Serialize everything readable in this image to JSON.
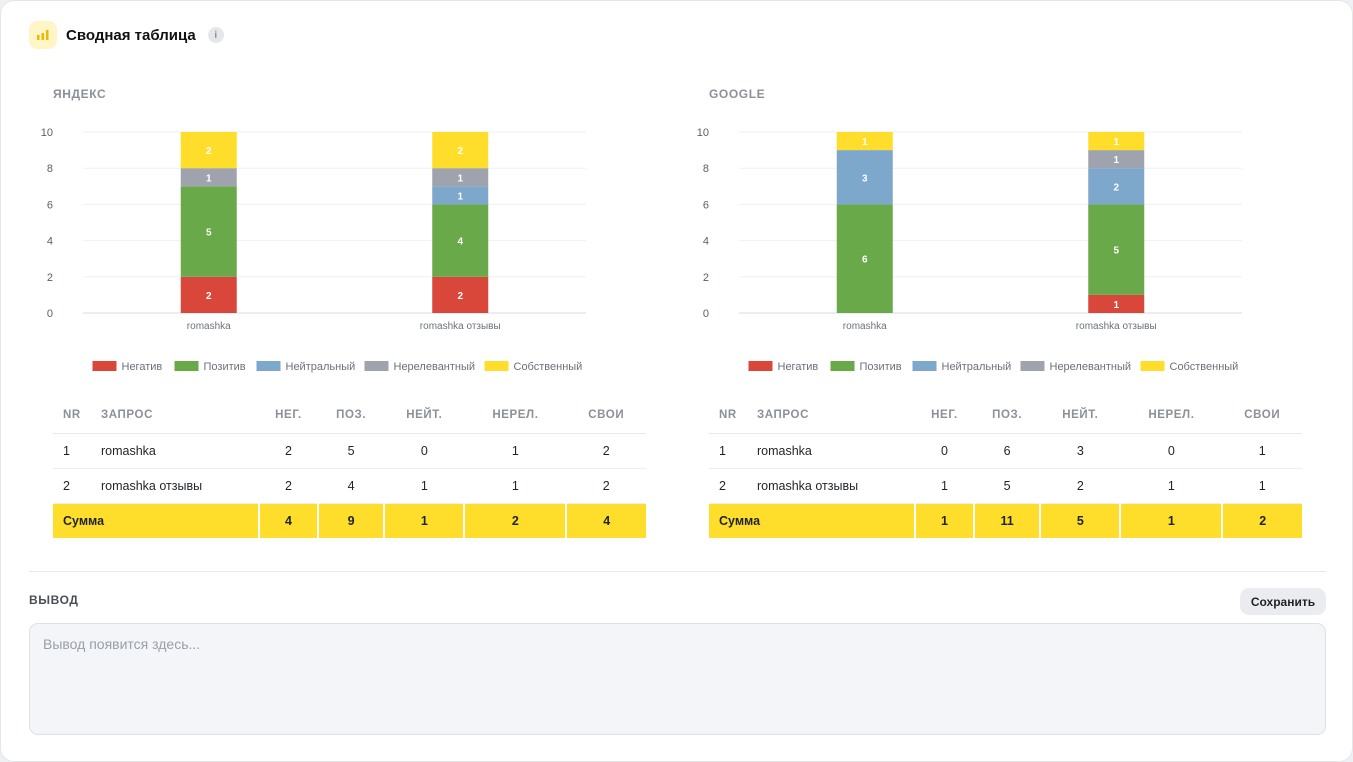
{
  "header": {
    "title": "Сводная таблица",
    "info": "i",
    "icon": "bar-chart-icon"
  },
  "colors": {
    "Негатив": "#d9473b",
    "Позитив": "#6aa94a",
    "Нейтральный": "#7ea7cc",
    "Нерелевантный": "#9ea3ad",
    "Собственный": "#ffdd2b",
    "accent": "#ffdd2b"
  },
  "panels": [
    {
      "title": "ЯНДЕКС",
      "table": {
        "headers": [
          "NR",
          "ЗАПРОС",
          "НЕГ.",
          "ПОЗ.",
          "НЕЙТ.",
          "НЕРЕЛ.",
          "СВОИ"
        ],
        "rows": [
          [
            "1",
            "romashka",
            "2",
            "5",
            "0",
            "1",
            "2"
          ],
          [
            "2",
            "romashka отзывы",
            "2",
            "4",
            "1",
            "1",
            "2"
          ]
        ],
        "sum": [
          "Сумма",
          "4",
          "9",
          "1",
          "2",
          "4"
        ]
      }
    },
    {
      "title": "GOOGLE",
      "table": {
        "headers": [
          "NR",
          "ЗАПРОС",
          "НЕГ.",
          "ПОЗ.",
          "НЕЙТ.",
          "НЕРЕЛ.",
          "СВОИ"
        ],
        "rows": [
          [
            "1",
            "romashka",
            "0",
            "6",
            "3",
            "0",
            "1"
          ],
          [
            "2",
            "romashka отзывы",
            "1",
            "5",
            "2",
            "1",
            "1"
          ]
        ],
        "sum": [
          "Сумма",
          "1",
          "11",
          "5",
          "1",
          "2"
        ]
      }
    }
  ],
  "chart_data": [
    {
      "type": "bar",
      "stacked": true,
      "title": "ЯНДЕКС",
      "categories": [
        "romashka",
        "romashka отзывы"
      ],
      "ylim": [
        0,
        10
      ],
      "yticks": [
        0,
        2,
        4,
        6,
        8,
        10
      ],
      "grid": true,
      "legend_position": "bottom",
      "series": [
        {
          "name": "Негатив",
          "values": [
            2,
            2
          ]
        },
        {
          "name": "Позитив",
          "values": [
            5,
            4
          ]
        },
        {
          "name": "Нейтральный",
          "values": [
            0,
            1
          ]
        },
        {
          "name": "Нерелевантный",
          "values": [
            1,
            1
          ]
        },
        {
          "name": "Собственный",
          "values": [
            2,
            2
          ]
        }
      ]
    },
    {
      "type": "bar",
      "stacked": true,
      "title": "GOOGLE",
      "categories": [
        "romashka",
        "romashka отзывы"
      ],
      "ylim": [
        0,
        10
      ],
      "yticks": [
        0,
        2,
        4,
        6,
        8,
        10
      ],
      "grid": true,
      "legend_position": "bottom",
      "series": [
        {
          "name": "Негатив",
          "values": [
            0,
            1
          ]
        },
        {
          "name": "Позитив",
          "values": [
            6,
            5
          ]
        },
        {
          "name": "Нейтральный",
          "values": [
            3,
            2
          ]
        },
        {
          "name": "Нерелевантный",
          "values": [
            0,
            1
          ]
        },
        {
          "name": "Собственный",
          "values": [
            1,
            1
          ]
        }
      ]
    }
  ],
  "output": {
    "label": "ВЫВОД",
    "placeholder": "Вывод появится здесь...",
    "value": ""
  },
  "save_button": {
    "label": "Сохранить"
  }
}
